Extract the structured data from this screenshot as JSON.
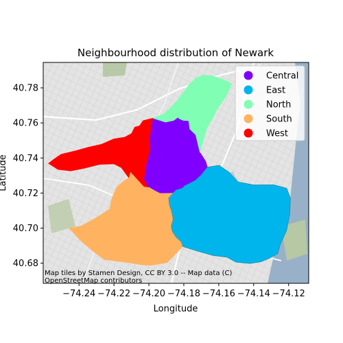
{
  "chart_data": {
    "type": "choropleth-map",
    "title": "Neighbourhood distribution of Newark",
    "xlabel": "Longitude",
    "ylabel": "Latitude",
    "xlim": [
      -74.2605,
      -74.1085
    ],
    "ylim": [
      40.6685,
      40.7945
    ],
    "xticks": [
      -74.24,
      -74.22,
      -74.2,
      -74.18,
      -74.16,
      -74.14,
      -74.12
    ],
    "xtick_labels": [
      "−74.24",
      "−74.22",
      "−74.20",
      "−74.18",
      "−74.16",
      "−74.14",
      "−74.12"
    ],
    "yticks": [
      40.68,
      40.7,
      40.72,
      40.74,
      40.76,
      40.78
    ],
    "ytick_labels": [
      "40.68",
      "40.70",
      "40.72",
      "40.74",
      "40.76",
      "40.78"
    ],
    "legend_position": "top-right",
    "attribution": [
      "Map tiles by Stamen Design, CC BY 3.0 -- Map data (C)",
      "OpenStreetMap contributors"
    ],
    "regions": [
      {
        "name": "Central",
        "color": "#7f00ff",
        "polygon": [
          [
            -74.1977,
            40.7627
          ],
          [
            -74.1905,
            40.7604
          ],
          [
            -74.1858,
            40.7614
          ],
          [
            -74.1834,
            40.7632
          ],
          [
            -74.1826,
            40.7624
          ],
          [
            -74.1803,
            40.7614
          ],
          [
            -74.1772,
            40.7612
          ],
          [
            -74.1766,
            40.7565
          ],
          [
            -74.1732,
            40.7532
          ],
          [
            -74.1708,
            40.7432
          ],
          [
            -74.1675,
            40.7381
          ],
          [
            -74.1665,
            40.7347
          ],
          [
            -74.1701,
            40.7303
          ],
          [
            -74.1736,
            40.7271
          ],
          [
            -74.1799,
            40.7239
          ],
          [
            -74.1807,
            40.7229
          ],
          [
            -74.1845,
            40.7217
          ],
          [
            -74.186,
            40.7202
          ],
          [
            -74.1936,
            40.7198
          ],
          [
            -74.1962,
            40.7211
          ],
          [
            -74.2003,
            40.7234
          ],
          [
            -74.2029,
            40.7277
          ],
          [
            -74.2016,
            40.7362
          ],
          [
            -74.1993,
            40.7447
          ],
          [
            -74.1995,
            40.7522
          ],
          [
            -74.1985,
            40.759
          ]
        ]
      },
      {
        "name": "East",
        "color": "#00b5eb",
        "polygon": [
          [
            -74.1665,
            40.7347
          ],
          [
            -74.1598,
            40.7358
          ],
          [
            -74.154,
            40.7318
          ],
          [
            -74.1488,
            40.7263
          ],
          [
            -74.1401,
            40.7246
          ],
          [
            -74.1285,
            40.7247
          ],
          [
            -74.1211,
            40.7227
          ],
          [
            -74.119,
            40.7171
          ],
          [
            -74.1193,
            40.7083
          ],
          [
            -74.1212,
            40.6986
          ],
          [
            -74.1248,
            40.6907
          ],
          [
            -74.1262,
            40.6855
          ],
          [
            -74.1305,
            40.683
          ],
          [
            -74.1358,
            40.6808
          ],
          [
            -74.1421,
            40.6798
          ],
          [
            -74.1502,
            40.6806
          ],
          [
            -74.1553,
            40.6834
          ],
          [
            -74.1632,
            40.6844
          ],
          [
            -74.1723,
            40.6869
          ],
          [
            -74.1806,
            40.6895
          ],
          [
            -74.1814,
            40.6921
          ],
          [
            -74.1844,
            40.6947
          ],
          [
            -74.1866,
            40.698
          ],
          [
            -74.1872,
            40.7012
          ],
          [
            -74.1861,
            40.705
          ],
          [
            -74.187,
            40.7097
          ],
          [
            -74.1882,
            40.713
          ],
          [
            -74.1887,
            40.7172
          ],
          [
            -74.1863,
            40.7198
          ],
          [
            -74.1845,
            40.7217
          ],
          [
            -74.1807,
            40.7229
          ],
          [
            -74.1799,
            40.7239
          ],
          [
            -74.1736,
            40.7271
          ],
          [
            -74.1701,
            40.7303
          ]
        ]
      },
      {
        "name": "North",
        "color": "#80ffb4",
        "polygon": [
          [
            -74.1914,
            40.7652
          ],
          [
            -74.1875,
            40.7688
          ],
          [
            -74.1844,
            40.7722
          ],
          [
            -74.1804,
            40.7771
          ],
          [
            -74.1772,
            40.7816
          ],
          [
            -74.1731,
            40.7856
          ],
          [
            -74.1691,
            40.7873
          ],
          [
            -74.1641,
            40.7869
          ],
          [
            -74.1574,
            40.7848
          ],
          [
            -74.1525,
            40.7823
          ],
          [
            -74.156,
            40.7749
          ],
          [
            -74.1605,
            40.7685
          ],
          [
            -74.1638,
            40.7621
          ],
          [
            -74.1669,
            40.7567
          ],
          [
            -74.1708,
            40.7432
          ],
          [
            -74.1732,
            40.7532
          ],
          [
            -74.1766,
            40.7565
          ],
          [
            -74.1772,
            40.7612
          ],
          [
            -74.1803,
            40.7614
          ],
          [
            -74.1826,
            40.7624
          ],
          [
            -74.1834,
            40.7632
          ],
          [
            -74.1858,
            40.7614
          ],
          [
            -74.1905,
            40.7604
          ],
          [
            -74.1977,
            40.7627
          ]
        ]
      },
      {
        "name": "South",
        "color": "#ffb360",
        "polygon": [
          [
            -74.2003,
            40.7234
          ],
          [
            -74.2028,
            40.7237
          ],
          [
            -74.2052,
            40.7264
          ],
          [
            -74.2088,
            40.7303
          ],
          [
            -74.2106,
            40.7322
          ],
          [
            -74.2116,
            40.7288
          ],
          [
            -74.2156,
            40.7258
          ],
          [
            -74.2185,
            40.7233
          ],
          [
            -74.2212,
            40.7171
          ],
          [
            -74.2225,
            40.7108
          ],
          [
            -74.2272,
            40.7078
          ],
          [
            -74.2318,
            40.705
          ],
          [
            -74.2388,
            40.7012
          ],
          [
            -74.2456,
            40.6999
          ],
          [
            -74.2392,
            40.693
          ],
          [
            -74.231,
            40.686
          ],
          [
            -74.2254,
            40.682
          ],
          [
            -74.2123,
            40.6804
          ],
          [
            -74.2037,
            40.679
          ],
          [
            -74.1985,
            40.6788
          ],
          [
            -74.1895,
            40.6803
          ],
          [
            -74.1806,
            40.6895
          ],
          [
            -74.1814,
            40.6921
          ],
          [
            -74.1844,
            40.6947
          ],
          [
            -74.1866,
            40.698
          ],
          [
            -74.1872,
            40.7012
          ],
          [
            -74.1861,
            40.705
          ],
          [
            -74.187,
            40.7097
          ],
          [
            -74.1882,
            40.713
          ],
          [
            -74.1887,
            40.7172
          ],
          [
            -74.1863,
            40.7198
          ],
          [
            -74.1936,
            40.7198
          ],
          [
            -74.1962,
            40.7211
          ]
        ]
      },
      {
        "name": "West",
        "color": "#ff0000",
        "polygon": [
          [
            -74.1977,
            40.7627
          ],
          [
            -74.2033,
            40.7613
          ],
          [
            -74.2054,
            40.7583
          ],
          [
            -74.2081,
            40.7576
          ],
          [
            -74.21,
            40.7539
          ],
          [
            -74.214,
            40.7518
          ],
          [
            -74.22,
            40.7509
          ],
          [
            -74.2271,
            40.7478
          ],
          [
            -74.2348,
            40.7461
          ],
          [
            -74.2423,
            40.744
          ],
          [
            -74.2503,
            40.7421
          ],
          [
            -74.2545,
            40.7392
          ],
          [
            -74.2575,
            40.7369
          ],
          [
            -74.252,
            40.7334
          ],
          [
            -74.2448,
            40.7326
          ],
          [
            -74.2373,
            40.7341
          ],
          [
            -74.2282,
            40.7363
          ],
          [
            -74.22,
            40.7366
          ],
          [
            -74.2158,
            40.7345
          ],
          [
            -74.2116,
            40.7288
          ],
          [
            -74.2106,
            40.7322
          ],
          [
            -74.2088,
            40.7303
          ],
          [
            -74.2052,
            40.7264
          ],
          [
            -74.2028,
            40.7237
          ],
          [
            -74.2003,
            40.7234
          ],
          [
            -74.2029,
            40.7277
          ],
          [
            -74.2016,
            40.7362
          ],
          [
            -74.1993,
            40.7447
          ],
          [
            -74.1995,
            40.7522
          ],
          [
            -74.1985,
            40.759
          ]
        ]
      }
    ]
  }
}
